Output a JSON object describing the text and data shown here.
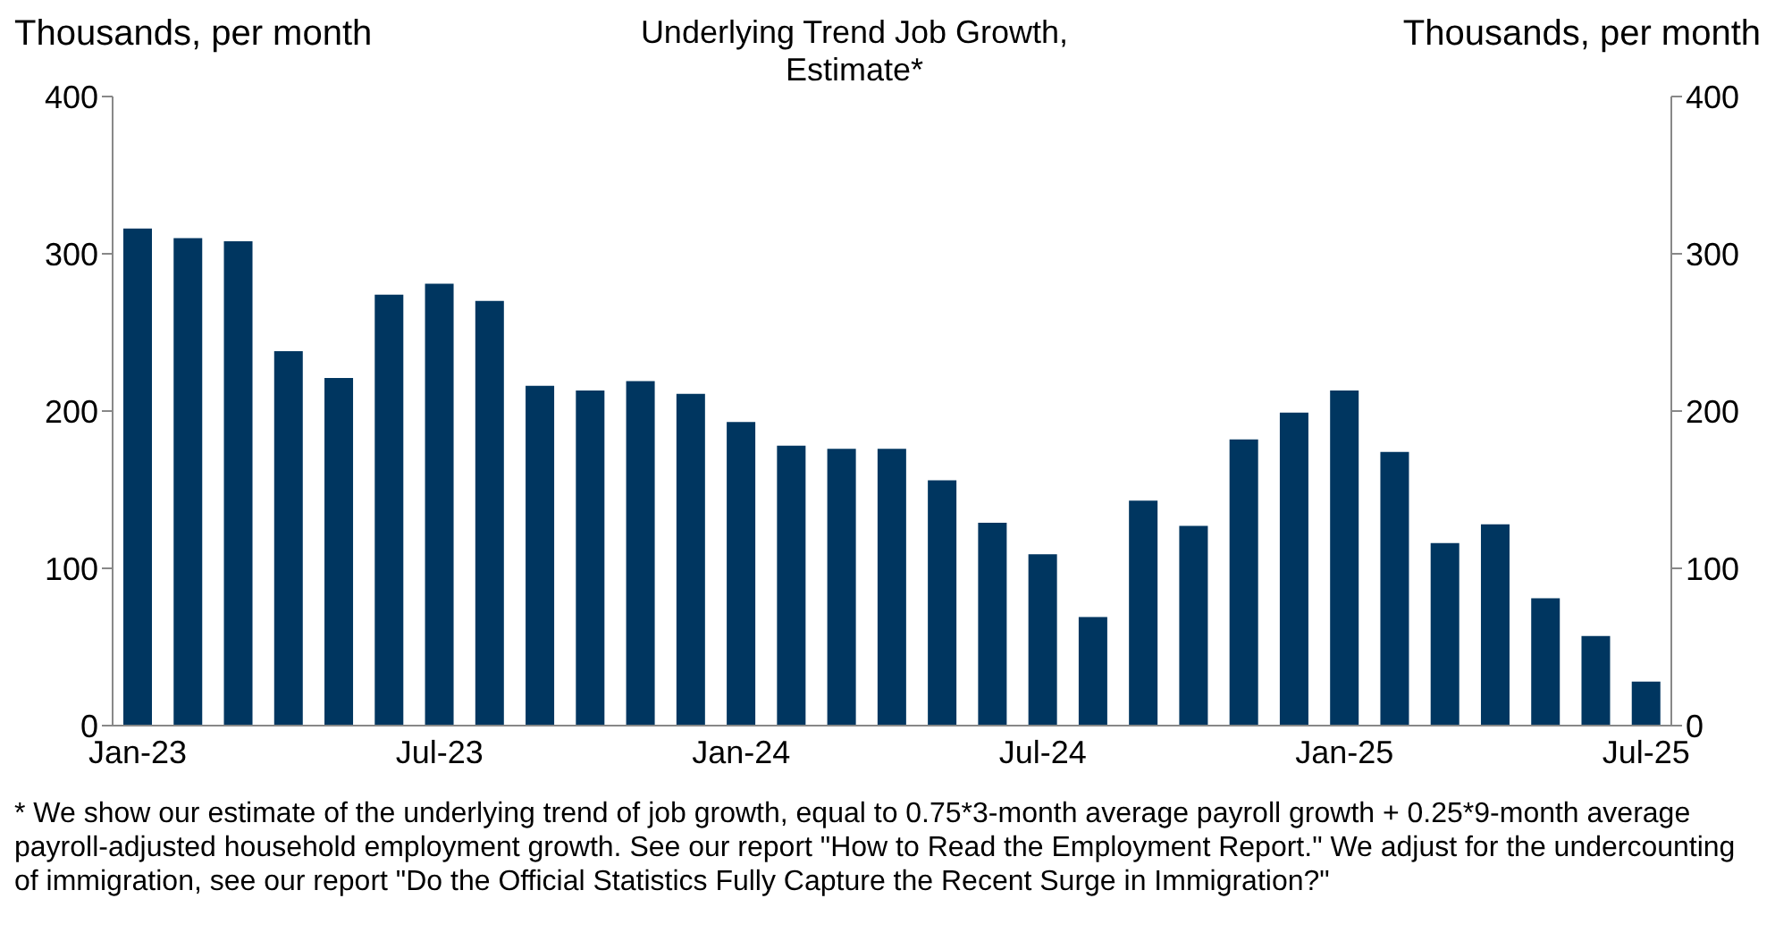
{
  "chart_data": {
    "type": "bar",
    "title": "Underlying Trend Job Growth,\nEstimate*",
    "ylabel": "Thousands, per month",
    "y2label": "Thousands, per month",
    "categories": [
      "Jan-23",
      null,
      null,
      null,
      null,
      null,
      "Jul-23",
      null,
      null,
      null,
      null,
      null,
      "Jan-24",
      null,
      null,
      null,
      null,
      null,
      "Jul-24",
      null,
      null,
      null,
      null,
      null,
      "Jan-25",
      null,
      null,
      null,
      null,
      null,
      "Jul-25"
    ],
    "values": [
      316,
      310,
      308,
      238,
      221,
      274,
      281,
      270,
      216,
      213,
      219,
      211,
      193,
      178,
      176,
      176,
      156,
      129,
      109,
      69,
      143,
      127,
      182,
      199,
      213,
      174,
      116,
      128,
      81,
      57,
      28
    ],
    "color": "#003660",
    "ylim": [
      0,
      400
    ],
    "yticks": [
      0,
      100,
      200,
      300,
      400
    ],
    "y2lim": [
      0,
      400
    ],
    "y2ticks": [
      0,
      100,
      200,
      300,
      400
    ],
    "grid": false,
    "legend": false,
    "annotations": [
      "* We show our estimate of the underlying trend of job growth, equal to 0.75*3-month average payroll growth + 0.25*9-month average payroll-adjusted household employment growth.  See our report \"How to Read the Employment Report.\" We adjust for the undercounting of immigration, see our report \"Do the Official Statistics Fully Capture the Recent Surge in Immigration?\""
    ]
  }
}
